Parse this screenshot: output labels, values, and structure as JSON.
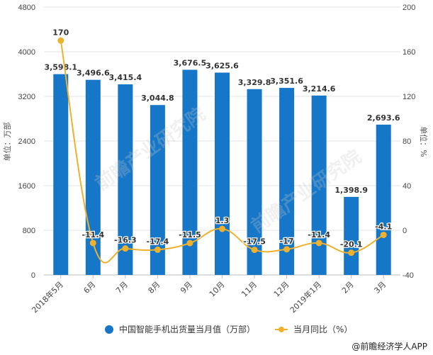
{
  "chart_data": {
    "type": "bar+line",
    "title": "",
    "categories": [
      "2018年5月",
      "6月",
      "7月",
      "8月",
      "9月",
      "10月",
      "11月",
      "12月",
      "2019年1月",
      "2月",
      "3月"
    ],
    "series": [
      {
        "name": "中国智能手机出货量当月值（万部）",
        "type": "bar",
        "axis": "left",
        "color": "#1676C8",
        "values": [
          3598.1,
          3496.6,
          3415.4,
          3044.8,
          3676.5,
          3625.6,
          3329.8,
          3351.6,
          3214.6,
          1398.9,
          2693.6
        ],
        "labels": [
          "3,598.1",
          "3,496.6",
          "3,415.4",
          "3,044.8",
          "3,676.5",
          "3,625.6",
          "3,329.8",
          "3,351.6",
          "3,214.6",
          "1,398.9",
          "2,693.6"
        ]
      },
      {
        "name": "当月同比（%）",
        "type": "line",
        "axis": "right",
        "color": "#EDB12E",
        "values": [
          170,
          -11.4,
          -16.3,
          -17.4,
          -11.5,
          1.3,
          -17.5,
          -17,
          -11.4,
          -20.1,
          -4.1
        ],
        "labels": [
          "170",
          "-11.4",
          "-16.3",
          "-17.4",
          "-11.5",
          "1.3",
          "-17.5",
          "-17",
          "-11.4",
          "-20.1",
          "-4.1"
        ]
      }
    ],
    "ylabel": "单位：万部",
    "ylabel_right": "单位：%",
    "ylim": [
      0,
      4800
    ],
    "yticks": [
      0,
      800,
      1600,
      2400,
      3200,
      4000,
      4800
    ],
    "ylim_right": [
      -40,
      200
    ],
    "yticks_right": [
      -40,
      0,
      40,
      80,
      120,
      160,
      200
    ],
    "grid": true,
    "legend_position": "bottom"
  },
  "legend": {
    "bar_label": "中国智能手机出货量当月值（万部）",
    "line_label": "当月同比（%）"
  },
  "credit": "@前瞻经济学人APP",
  "watermark": "前瞻产业研究院"
}
